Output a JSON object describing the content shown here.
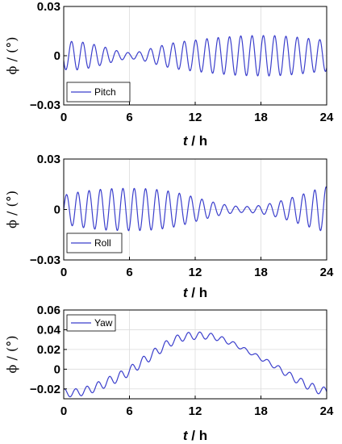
{
  "figure": {
    "colors": {
      "series": "#3b3fcc",
      "axis": "#000000",
      "grid": "#dcdcdc"
    }
  },
  "chart_data": [
    {
      "type": "line",
      "title": "",
      "xlabel_var": "t",
      "xlabel_unit": " / h",
      "ylabel": "ϕ / (°)",
      "xlim": [
        0,
        24
      ],
      "ylim": [
        -0.03,
        0.03
      ],
      "xticks": [
        0,
        6,
        12,
        18,
        24
      ],
      "xtick_labels": [
        "0",
        "6",
        "12",
        "18",
        "24"
      ],
      "yticks": [
        -0.03,
        0,
        0.03
      ],
      "ytick_labels": [
        "−0.03",
        "0",
        "0.03"
      ],
      "grid": true,
      "legend_position": "bottom-left",
      "series": [
        {
          "name": "Pitch",
          "color": "#3b3fcc",
          "x": [
            0,
            1,
            2,
            3,
            4,
            5,
            6,
            7,
            8,
            9,
            10,
            11,
            12,
            13,
            14,
            15,
            16,
            17,
            18,
            19,
            20,
            21,
            22,
            23,
            24
          ],
          "amplitude": [
            0.0085,
            0.0088,
            0.008,
            0.0065,
            0.0048,
            0.0028,
            0.0018,
            0.0025,
            0.0045,
            0.0063,
            0.0078,
            0.0088,
            0.0095,
            0.0103,
            0.011,
            0.0115,
            0.012,
            0.0122,
            0.0123,
            0.0123,
            0.012,
            0.0115,
            0.0108,
            0.01,
            0.0095
          ],
          "period_h": 1.03,
          "trend": [
            0
          ],
          "phase": 3.5
        }
      ]
    },
    {
      "type": "line",
      "title": "",
      "xlabel_var": "t",
      "xlabel_unit": " / h",
      "ylabel": "ϕ / (°)",
      "xlim": [
        0,
        24
      ],
      "ylim": [
        -0.03,
        0.03
      ],
      "xticks": [
        0,
        6,
        12,
        18,
        24
      ],
      "xtick_labels": [
        "0",
        "6",
        "12",
        "18",
        "24"
      ],
      "yticks": [
        -0.03,
        0,
        0.03
      ],
      "ytick_labels": [
        "−0.03",
        "0",
        "0.03"
      ],
      "grid": true,
      "legend_position": "bottom-left",
      "series": [
        {
          "name": "Roll",
          "color": "#3b3fcc",
          "x": [
            0,
            1,
            2,
            3,
            4,
            5,
            6,
            7,
            8,
            9,
            10,
            11,
            12,
            13,
            14,
            15,
            16,
            17,
            18,
            19,
            20,
            21,
            22,
            23,
            24
          ],
          "amplitude": [
            0.0085,
            0.01,
            0.011,
            0.0118,
            0.0123,
            0.0125,
            0.0126,
            0.0125,
            0.0122,
            0.0115,
            0.0105,
            0.009,
            0.0072,
            0.0055,
            0.0038,
            0.0025,
            0.0018,
            0.0018,
            0.0025,
            0.0038,
            0.0055,
            0.0075,
            0.0095,
            0.0118,
            0.0135
          ],
          "period_h": 1.03,
          "trend": [
            0
          ],
          "phase": 0.0
        }
      ]
    },
    {
      "type": "line",
      "title": "",
      "xlabel_var": "t",
      "xlabel_unit": " / h",
      "ylabel": "ϕ / (°)",
      "xlim": [
        0,
        24
      ],
      "ylim": [
        -0.03,
        0.06
      ],
      "xticks": [
        0,
        6,
        12,
        18,
        24
      ],
      "xtick_labels": [
        "0",
        "6",
        "12",
        "18",
        "24"
      ],
      "yticks": [
        -0.02,
        0,
        0.02,
        0.04,
        0.06
      ],
      "ytick_labels": [
        "−0.02",
        "0",
        "0.02",
        "0.04",
        "0.06"
      ],
      "grid": true,
      "legend_position": "top-left",
      "series": [
        {
          "name": "Yaw",
          "color": "#3b3fcc",
          "x": [
            0,
            1,
            2,
            3,
            4,
            5,
            6,
            7,
            8,
            9,
            10,
            11,
            12,
            13,
            14,
            15,
            16,
            17,
            18,
            19,
            20,
            21,
            22,
            23,
            24
          ],
          "trend": [
            -0.024,
            -0.024,
            -0.022,
            -0.018,
            -0.013,
            -0.008,
            -0.002,
            0.006,
            0.014,
            0.022,
            0.029,
            0.033,
            0.034,
            0.034,
            0.032,
            0.028,
            0.023,
            0.017,
            0.011,
            0.005,
            -0.002,
            -0.009,
            -0.015,
            -0.02,
            -0.023
          ],
          "amplitude": [
            0.004,
            0.004,
            0.0042,
            0.0045,
            0.0047,
            0.0048,
            0.0048,
            0.0048,
            0.0047,
            0.0045,
            0.0042,
            0.004,
            0.0038,
            0.0035,
            0.003,
            0.0025,
            0.002,
            0.0018,
            0.002,
            0.0025,
            0.003,
            0.0035,
            0.004,
            0.0042,
            0.0042
          ],
          "period_h": 1.03,
          "phase": 1.2
        }
      ]
    }
  ]
}
